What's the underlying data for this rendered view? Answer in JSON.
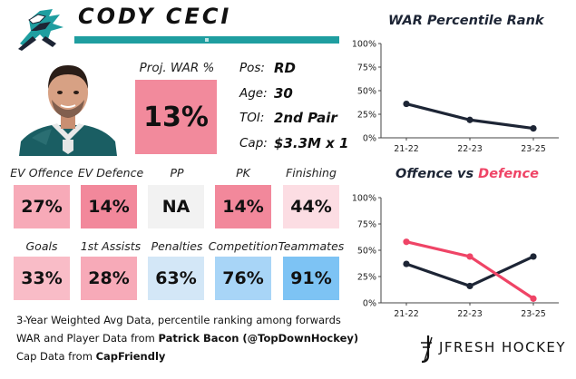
{
  "player": {
    "name": "CODY CECI",
    "pos_label": "Pos:",
    "pos_value": "RD",
    "age_label": "Age:",
    "age_value": "30",
    "toi_label": "TOI:",
    "toi_value": "2nd Pair",
    "cap_label": "Cap:",
    "cap_value": "$3.3M x 1"
  },
  "war": {
    "label": "Proj. WAR %",
    "value": "13%",
    "color": "#f28a9c"
  },
  "tiles": [
    {
      "label": "EV Offence",
      "value": "27%",
      "color": "#f7aab8"
    },
    {
      "label": "EV Defence",
      "value": "14%",
      "color": "#f2889b"
    },
    {
      "label": "PP",
      "value": "NA",
      "color": "#f2f2f2"
    },
    {
      "label": "PK",
      "value": "14%",
      "color": "#f2889b"
    },
    {
      "label": "Finishing",
      "value": "44%",
      "color": "#fcdde3"
    },
    {
      "label": "Goals",
      "value": "33%",
      "color": "#f9bcc7"
    },
    {
      "label": "1st Assists",
      "value": "28%",
      "color": "#f7aab8"
    },
    {
      "label": "Penalties",
      "value": "63%",
      "color": "#d3e7f7"
    },
    {
      "label": "Competition",
      "value": "76%",
      "color": "#a8d5f7"
    },
    {
      "label": "Teammates",
      "value": "91%",
      "color": "#7dc3f4"
    }
  ],
  "footer": {
    "line1": "3-Year Weighted Avg Data, percentile ranking among forwards",
    "line2_prefix": "WAR and Player Data from ",
    "line2_source": "Patrick Bacon (@TopDownHockey)",
    "line3_prefix": "Cap Data from ",
    "line3_source": "CapFriendly"
  },
  "brand": {
    "name": "JFRESH HOCKEY"
  },
  "colors": {
    "teal": "#1f9ea0",
    "navy": "#1d2535",
    "pink": "#ef4466"
  },
  "chart_data": [
    {
      "type": "line",
      "title": "WAR Percentile Rank",
      "categories": [
        "21-22",
        "22-23",
        "23-25"
      ],
      "yticks": [
        "0%",
        "25%",
        "50%",
        "75%",
        "100%"
      ],
      "ylim": [
        0,
        100
      ],
      "grid": false,
      "series": [
        {
          "values": [
            36,
            19,
            10
          ],
          "color": "#1d2535"
        }
      ]
    },
    {
      "type": "line",
      "title": "Offence vs Defence",
      "title_parts": [
        "Offence",
        " vs ",
        "Defence"
      ],
      "categories": [
        "21-22",
        "22-23",
        "23-25"
      ],
      "yticks": [
        "0%",
        "25%",
        "50%",
        "75%",
        "100%"
      ],
      "ylim": [
        0,
        100
      ],
      "grid": false,
      "series": [
        {
          "name": "Offence",
          "values": [
            37,
            16,
            44
          ],
          "color": "#1d2535"
        },
        {
          "name": "Defence",
          "values": [
            58,
            44,
            4
          ],
          "color": "#ef4466"
        }
      ]
    }
  ]
}
